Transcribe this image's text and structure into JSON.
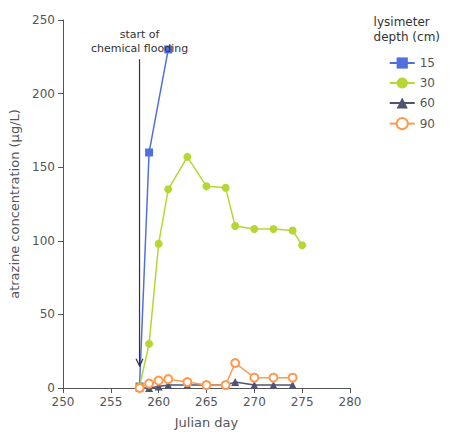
{
  "chart_data": {
    "type": "line",
    "xlabel": "Julian day",
    "ylabel": "atrazine concentration (μg/L)",
    "xlim": [
      250,
      280
    ],
    "ylim": [
      0,
      250
    ],
    "xticks": [
      250,
      255,
      260,
      265,
      270,
      275,
      280
    ],
    "yticks": [
      0,
      50,
      100,
      150,
      200,
      250
    ],
    "grid": false,
    "legend": "upper right",
    "legend_title": "lysimeter\ndepth (cm)",
    "annotations": [
      {
        "text": "start of\nchemical flooding",
        "x": 258,
        "y": 245,
        "arrow_to": [
          258,
          15
        ]
      }
    ],
    "series": [
      {
        "name": "15",
        "marker": "square",
        "x": [
          258,
          259,
          261
        ],
        "values": [
          1,
          160,
          230
        ]
      },
      {
        "name": "30",
        "marker": "circle",
        "x": [
          258,
          259,
          260,
          261,
          263,
          265,
          267,
          268,
          270,
          272,
          274,
          275
        ],
        "values": [
          1,
          30,
          98,
          135,
          157,
          137,
          136,
          110,
          108,
          108,
          107,
          97
        ]
      },
      {
        "name": "60",
        "marker": "triangle",
        "x": [
          258,
          259,
          260,
          261,
          263,
          265,
          267,
          268,
          270,
          272,
          274
        ],
        "values": [
          0,
          0,
          1,
          2,
          2,
          2,
          2,
          4,
          2,
          2,
          2
        ]
      },
      {
        "name": "90",
        "marker": "open_circle",
        "x": [
          258,
          259,
          260,
          261,
          263,
          265,
          267,
          268,
          270,
          272,
          274
        ],
        "values": [
          0,
          3,
          5,
          6,
          4,
          2,
          2,
          17,
          7,
          7,
          7
        ]
      }
    ]
  }
}
